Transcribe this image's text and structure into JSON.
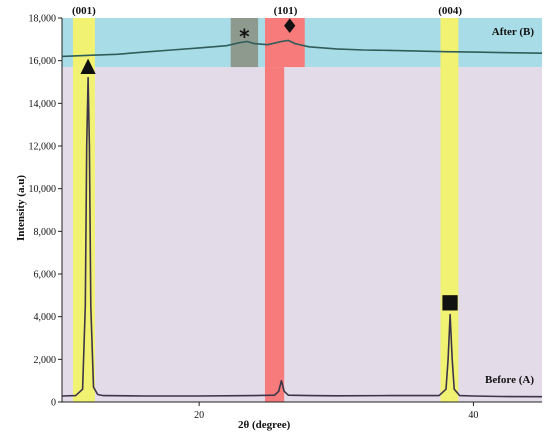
{
  "chart_data": {
    "type": "line",
    "xlabel": "2θ (degree)",
    "ylabel": "Intensity (a.u)",
    "xlim": [
      10,
      45
    ],
    "ylim": [
      0,
      18000
    ],
    "x_ticks": [
      20,
      40
    ],
    "y_ticks": [
      0,
      2000,
      4000,
      6000,
      8000,
      10000,
      12000,
      14000,
      16000,
      18000
    ],
    "y_tick_labels": [
      "0",
      "2,000",
      "4,000",
      "6,000",
      "8,000",
      "10,000",
      "12,000",
      "14,000",
      "16,000",
      "18,000"
    ],
    "grid": false,
    "colors": {
      "before_panel": "#e3dbe8",
      "after_panel": "#a8dde8",
      "yellow_band": "#f2f272",
      "red_band": "#f77b7b",
      "gray_band": "#8f9a8e",
      "before_line": "#3c3549",
      "after_line": "#2f5d5a"
    },
    "bands": [
      {
        "name": "band-001",
        "x_range": [
          10.8,
          12.4
        ],
        "y_range": [
          0,
          18000
        ],
        "color": "#f2f272"
      },
      {
        "name": "band-101",
        "x_range": [
          24.8,
          27.7
        ],
        "y_range": [
          15700,
          18000
        ],
        "color": "#f77b7b"
      },
      {
        "name": "band-101-lower",
        "x_range": [
          24.8,
          26.2
        ],
        "y_range": [
          0,
          15700
        ],
        "color": "#f77b7b"
      },
      {
        "name": "band-004",
        "x_range": [
          37.6,
          38.9
        ],
        "y_range": [
          0,
          18000
        ],
        "color": "#f2f272"
      },
      {
        "name": "band-star",
        "x_range": [
          22.3,
          24.3
        ],
        "y_range": [
          15700,
          18000
        ],
        "color": "#8f9a8e"
      }
    ],
    "peak_labels": [
      {
        "label": "(001)",
        "x": 11.6
      },
      {
        "label": "(101)",
        "x": 26.3
      },
      {
        "label": "(004)",
        "x": 38.3
      }
    ],
    "markers": [
      {
        "symbol": "▲",
        "x": 11.9,
        "y": 15500
      },
      {
        "symbol": "*",
        "x": 23.3,
        "y": 16800
      },
      {
        "symbol": "♦",
        "x": 26.6,
        "y": 17300
      },
      {
        "symbol": "■",
        "x": 38.3,
        "y": 4400
      }
    ],
    "series": [
      {
        "name": "Before (A)",
        "x": [
          10,
          11,
          11.5,
          11.7,
          11.8,
          11.9,
          12.0,
          12.1,
          12.3,
          12.6,
          13,
          16,
          20,
          24,
          25.5,
          25.8,
          26.0,
          26.2,
          26.5,
          28,
          30,
          34,
          37.5,
          38.0,
          38.15,
          38.3,
          38.45,
          38.6,
          39.0,
          40,
          42,
          45
        ],
        "values": [
          280,
          300,
          600,
          4500,
          12000,
          15200,
          12000,
          4500,
          700,
          350,
          300,
          280,
          280,
          300,
          320,
          500,
          1000,
          500,
          320,
          300,
          290,
          300,
          300,
          600,
          2000,
          4100,
          2000,
          600,
          300,
          280,
          260,
          250
        ]
      },
      {
        "name": "After (B)",
        "x": [
          10,
          12,
          14,
          16,
          18,
          20,
          22,
          23,
          23.5,
          24,
          25,
          26,
          26.5,
          27,
          28,
          30,
          32,
          34,
          36,
          38,
          40,
          42,
          45
        ],
        "values": [
          16200,
          16250,
          16300,
          16400,
          16500,
          16600,
          16700,
          16850,
          16900,
          16800,
          16750,
          16900,
          16950,
          16800,
          16650,
          16550,
          16500,
          16480,
          16450,
          16420,
          16400,
          16380,
          16350
        ]
      }
    ]
  }
}
